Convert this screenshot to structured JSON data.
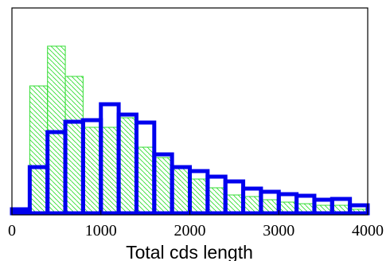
{
  "chart_data": {
    "type": "histogram",
    "xlabel": "Total cds length",
    "ylabel": "",
    "xlim": [
      0,
      4000
    ],
    "x_ticks": [
      0,
      1000,
      2000,
      3000,
      4000
    ],
    "bin_width": 200,
    "bin_starts": [
      0,
      200,
      400,
      600,
      800,
      1000,
      1200,
      1400,
      1600,
      1800,
      2000,
      2200,
      2400,
      2600,
      2800,
      3000,
      3200,
      3400,
      3600,
      3800
    ],
    "series": [
      {
        "style": "hatched",
        "color": "#33dd33",
        "values": [
          5,
          160,
          210,
          172,
          108,
          108,
          120,
          83,
          70,
          57,
          43,
          32,
          23,
          21,
          17,
          14,
          12,
          10,
          10,
          5
        ]
      },
      {
        "style": "outline",
        "color": "#0000ee",
        "values": [
          5,
          58,
          102,
          115,
          117,
          137,
          124,
          114,
          74,
          58,
          53,
          46,
          40,
          31,
          27,
          24,
          22,
          17,
          18,
          10
        ]
      }
    ],
    "grid": false,
    "legend": "none"
  }
}
